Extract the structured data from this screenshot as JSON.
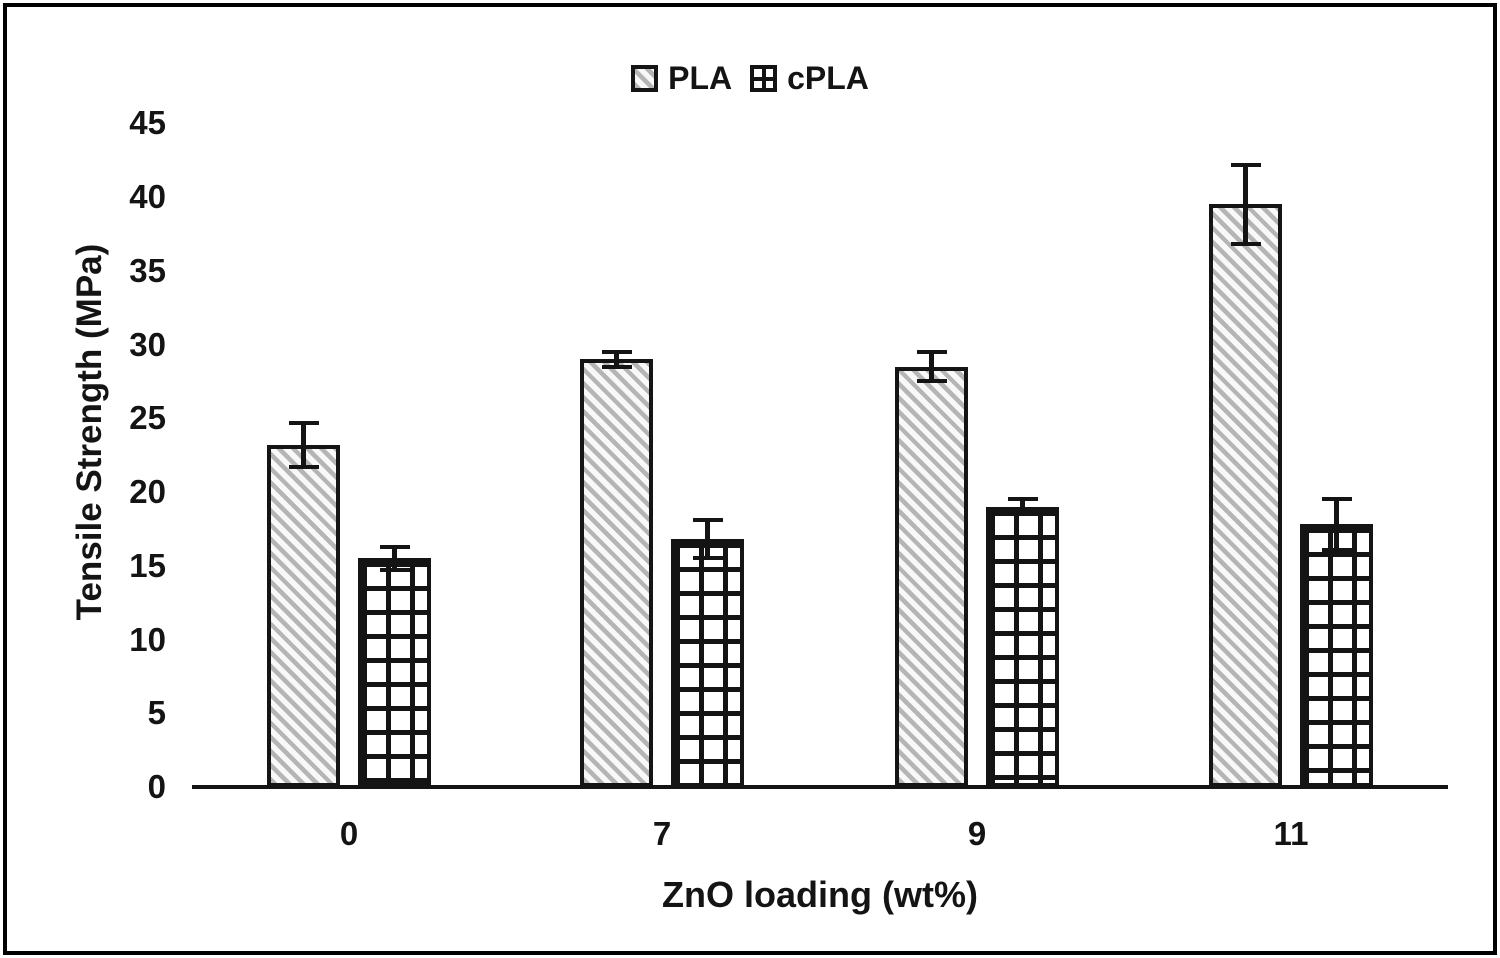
{
  "chart_data": {
    "type": "bar",
    "title": "",
    "categories": [
      "0",
      "7",
      "9",
      "11"
    ],
    "series": [
      {
        "name": "PLA",
        "pattern": "diagonal-hatch",
        "values": [
          23.2,
          29.0,
          28.5,
          39.5
        ],
        "errors": [
          1.5,
          0.5,
          1.0,
          2.7
        ]
      },
      {
        "name": "cPLA",
        "pattern": "grid-hatch",
        "values": [
          15.5,
          16.8,
          19.0,
          17.8
        ],
        "errors": [
          0.8,
          1.3,
          0.5,
          1.7
        ]
      }
    ],
    "xlabel": "ZnO loading (wt%)",
    "ylabel": "Tensile Strength (MPa)",
    "ylim": [
      0,
      45
    ],
    "yticks": [
      0,
      5,
      10,
      15,
      20,
      25,
      30,
      35,
      40,
      45
    ],
    "grid": false,
    "legend_position": "top-center",
    "colors": {
      "ink": "#141414",
      "pla_hatch_gray": "#b5b5b5",
      "bar_fill": "#ffffff",
      "background": "#ffffff"
    }
  }
}
